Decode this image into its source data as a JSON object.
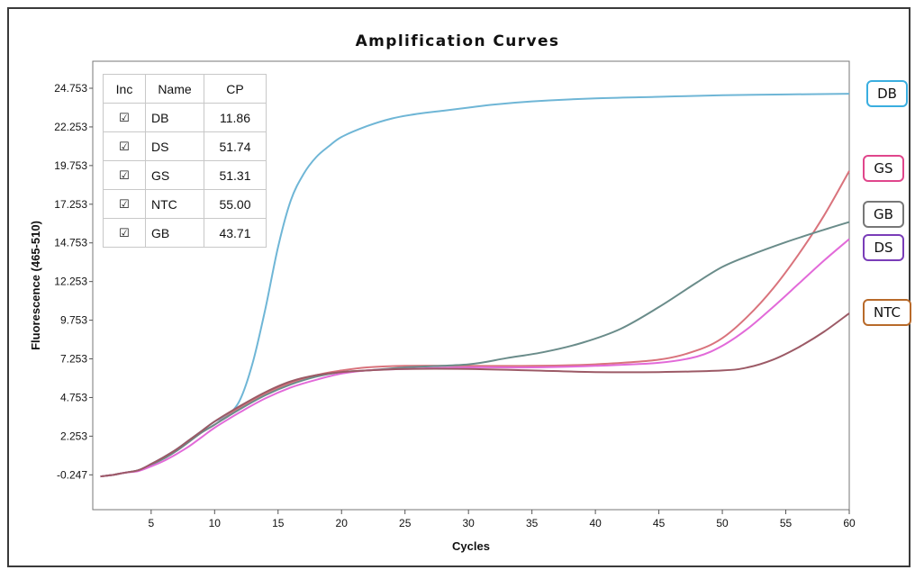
{
  "chart_data": {
    "type": "line",
    "title": "Amplification Curves",
    "xlabel": "Cycles",
    "ylabel": "Fluorescence (465-510)",
    "xlim": [
      0,
      60
    ],
    "ylim": [
      -2.5,
      26.5
    ],
    "xticks": [
      5,
      10,
      15,
      20,
      25,
      30,
      35,
      40,
      45,
      50,
      55,
      60
    ],
    "yticks": [
      -0.247,
      2.253,
      4.753,
      7.253,
      9.753,
      12.253,
      14.753,
      17.253,
      19.753,
      22.253,
      24.753
    ],
    "ytick_labels": [
      "-0.247",
      "2.253",
      "4.753",
      "7.253",
      "9.753",
      "12.253",
      "14.753",
      "17.253",
      "19.753",
      "22.253",
      "24.753"
    ],
    "grid": false,
    "series": [
      {
        "name": "DB",
        "color": "#6fb6d6",
        "x": [
          1,
          2,
          3,
          4,
          5,
          6,
          7,
          8,
          9,
          10,
          11,
          12,
          13,
          14,
          15,
          16,
          17,
          18,
          19,
          20,
          22,
          24,
          26,
          28,
          30,
          32,
          35,
          40,
          45,
          50,
          55,
          60
        ],
        "y": [
          -0.35,
          -0.25,
          -0.1,
          0.05,
          0.45,
          0.9,
          1.4,
          2.0,
          2.6,
          3.2,
          3.6,
          4.6,
          7.0,
          10.5,
          14.5,
          17.5,
          19.2,
          20.3,
          21.0,
          21.6,
          22.3,
          22.8,
          23.1,
          23.3,
          23.5,
          23.7,
          23.9,
          24.1,
          24.2,
          24.3,
          24.35,
          24.4
        ]
      },
      {
        "name": "GS",
        "color": "#d9737c",
        "x": [
          1,
          2,
          3,
          4,
          5,
          6,
          7,
          8,
          9,
          10,
          12,
          14,
          16,
          18,
          20,
          22,
          25,
          30,
          35,
          40,
          45,
          48,
          50,
          52,
          54,
          56,
          58,
          60
        ],
        "y": [
          -0.35,
          -0.25,
          -0.1,
          0.05,
          0.4,
          0.8,
          1.3,
          1.9,
          2.5,
          3.0,
          4.1,
          5.0,
          5.7,
          6.2,
          6.5,
          6.7,
          6.8,
          6.8,
          6.8,
          6.9,
          7.2,
          7.8,
          8.6,
          10.0,
          11.8,
          14.0,
          16.5,
          19.4
        ]
      },
      {
        "name": "GB",
        "color": "#6a8c8a",
        "x": [
          1,
          2,
          3,
          4,
          5,
          6,
          7,
          8,
          9,
          10,
          12,
          14,
          16,
          18,
          20,
          22,
          25,
          30,
          33,
          36,
          39,
          42,
          45,
          48,
          50,
          52,
          55,
          58,
          60
        ],
        "y": [
          -0.35,
          -0.25,
          -0.1,
          0.05,
          0.4,
          0.8,
          1.3,
          1.9,
          2.5,
          3.0,
          4.0,
          4.9,
          5.6,
          6.1,
          6.4,
          6.5,
          6.7,
          6.9,
          7.3,
          7.7,
          8.3,
          9.2,
          10.6,
          12.2,
          13.2,
          13.9,
          14.8,
          15.6,
          16.1
        ]
      },
      {
        "name": "DS",
        "color": "#e26ad9",
        "x": [
          1,
          2,
          3,
          4,
          5,
          6,
          7,
          8,
          9,
          10,
          12,
          14,
          16,
          18,
          20,
          22,
          25,
          30,
          35,
          40,
          45,
          48,
          50,
          52,
          54,
          56,
          58,
          60
        ],
        "y": [
          -0.35,
          -0.25,
          -0.1,
          0.0,
          0.3,
          0.65,
          1.1,
          1.6,
          2.2,
          2.8,
          3.8,
          4.7,
          5.4,
          5.9,
          6.3,
          6.5,
          6.6,
          6.7,
          6.7,
          6.8,
          7.0,
          7.4,
          8.1,
          9.2,
          10.6,
          12.1,
          13.6,
          15.0
        ]
      },
      {
        "name": "NTC",
        "color": "#9c5a66",
        "x": [
          1,
          2,
          3,
          4,
          5,
          6,
          7,
          8,
          9,
          10,
          12,
          14,
          16,
          18,
          20,
          22,
          25,
          30,
          35,
          40,
          45,
          50,
          52,
          54,
          56,
          58,
          60
        ],
        "y": [
          -0.35,
          -0.25,
          -0.1,
          0.05,
          0.45,
          0.9,
          1.4,
          2.0,
          2.6,
          3.2,
          4.2,
          5.1,
          5.8,
          6.2,
          6.4,
          6.5,
          6.6,
          6.6,
          6.5,
          6.4,
          6.4,
          6.5,
          6.7,
          7.2,
          8.0,
          9.0,
          10.2
        ]
      }
    ]
  },
  "table": {
    "headers": {
      "inc": "Inc",
      "name": "Name",
      "cp": "CP"
    },
    "rows": [
      {
        "inc": "☑",
        "name": "DB",
        "cp": "11.86"
      },
      {
        "inc": "☑",
        "name": "DS",
        "cp": "51.74"
      },
      {
        "inc": "☑",
        "name": "GS",
        "cp": "51.31"
      },
      {
        "inc": "☑",
        "name": "NTC",
        "cp": "55.00"
      },
      {
        "inc": "☑",
        "name": "GB",
        "cp": "43.71"
      }
    ]
  },
  "tags": [
    {
      "label": "DB",
      "color": "#3aaee0"
    },
    {
      "label": "GS",
      "color": "#e0468c"
    },
    {
      "label": "GB",
      "color": "#777777"
    },
    {
      "label": "DS",
      "color": "#7a3db8"
    },
    {
      "label": "NTC",
      "color": "#b86a2a"
    }
  ]
}
